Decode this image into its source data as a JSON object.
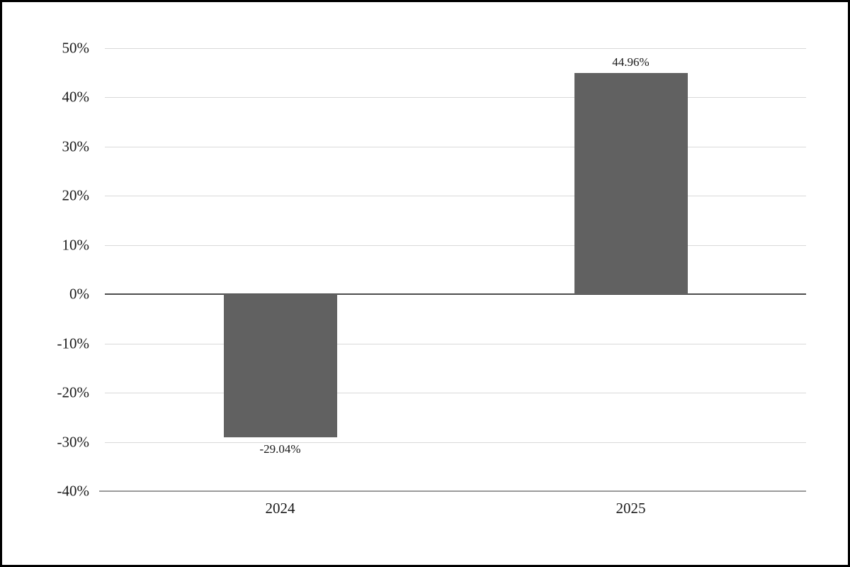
{
  "chart_data": {
    "type": "bar",
    "categories": [
      "2024",
      "2025"
    ],
    "values": [
      -29.04,
      44.96
    ],
    "value_labels": [
      "-29.04%",
      "44.96%"
    ],
    "title": "",
    "xlabel": "",
    "ylabel": "",
    "ylim": [
      -40,
      50
    ],
    "ytick_step": 10,
    "ytick_labels": [
      "50%",
      "40%",
      "30%",
      "20%",
      "10%",
      "0%",
      "-10%",
      "-20%",
      "-30%",
      "-40%"
    ],
    "ytick_values": [
      50,
      40,
      30,
      20,
      10,
      0,
      -10,
      -20,
      -30,
      -40
    ],
    "grid": true,
    "legend": "none",
    "bar_color": "#616161",
    "gridline_color": "#d9d9d9",
    "zero_line_color": "#4d4d4d",
    "baseline_color": "#9b9b9b",
    "text_color": "#1a1a1a",
    "background_color": "#ffffff",
    "border_color": "#000000"
  }
}
